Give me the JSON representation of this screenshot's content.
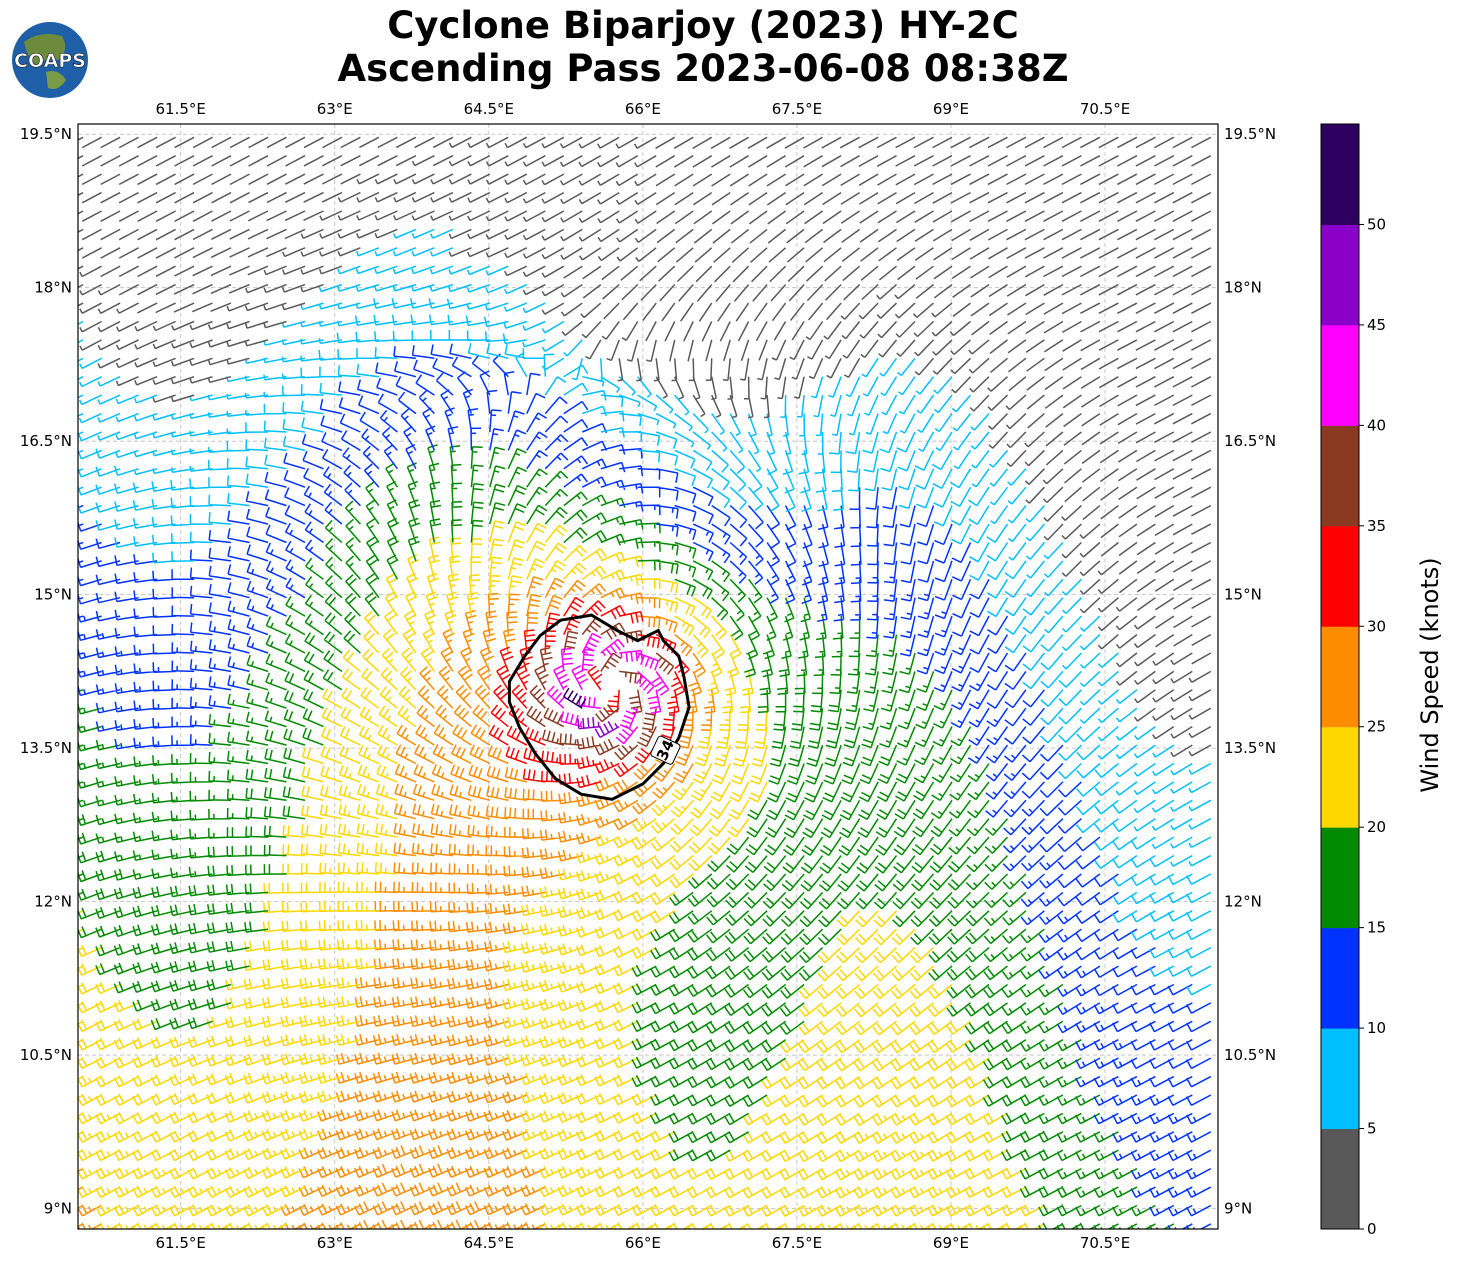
{
  "title_line1": "Cyclone Biparjoy (2023) HY-2C",
  "title_line2": "Ascending Pass 2023-06-08 08:38Z",
  "logo_text": "COAPS",
  "map": {
    "lon_range": [
      60.5,
      71.6
    ],
    "lat_range": [
      8.8,
      19.6
    ],
    "lon_ticks": [
      {
        "value": 61.5,
        "label": "61.5°E"
      },
      {
        "value": 63.0,
        "label": "63°E"
      },
      {
        "value": 64.5,
        "label": "64.5°E"
      },
      {
        "value": 66.0,
        "label": "66°E"
      },
      {
        "value": 67.5,
        "label": "67.5°E"
      },
      {
        "value": 69.0,
        "label": "69°E"
      },
      {
        "value": 70.5,
        "label": "70.5°E"
      }
    ],
    "lat_ticks": [
      {
        "value": 19.5,
        "label": "19.5°N"
      },
      {
        "value": 18.0,
        "label": "18°N"
      },
      {
        "value": 16.5,
        "label": "16.5°N"
      },
      {
        "value": 15.0,
        "label": "15°N"
      },
      {
        "value": 13.5,
        "label": "13.5°N"
      },
      {
        "value": 12.0,
        "label": "12°N"
      },
      {
        "value": 10.5,
        "label": "10.5°N"
      },
      {
        "value": 9.0,
        "label": "9°N"
      }
    ],
    "grid": true,
    "storm_center": {
      "lon": 65.7,
      "lat": 14.1
    },
    "contour_label": "34",
    "contour_34kt": [
      [
        65.2,
        14.75
      ],
      [
        65.5,
        14.8
      ],
      [
        65.75,
        14.65
      ],
      [
        65.95,
        14.55
      ],
      [
        66.15,
        14.65
      ],
      [
        66.2,
        14.55
      ],
      [
        66.35,
        14.4
      ],
      [
        66.4,
        14.2
      ],
      [
        66.45,
        13.9
      ],
      [
        66.35,
        13.6
      ],
      [
        66.2,
        13.35
      ],
      [
        66.0,
        13.15
      ],
      [
        65.7,
        13.0
      ],
      [
        65.4,
        13.05
      ],
      [
        65.15,
        13.2
      ],
      [
        64.95,
        13.45
      ],
      [
        64.8,
        13.7
      ],
      [
        64.7,
        13.95
      ],
      [
        64.7,
        14.15
      ],
      [
        64.85,
        14.4
      ],
      [
        65.0,
        14.6
      ],
      [
        65.2,
        14.75
      ]
    ]
  },
  "colorbar": {
    "label": "Wind Speed (knots)",
    "ticks": [
      "0",
      "5",
      "10",
      "15",
      "20",
      "25",
      "30",
      "35",
      "40",
      "45",
      "50"
    ],
    "colors": [
      "#595959",
      "#00bfff",
      "#0033ff",
      "#008b00",
      "#ffd700",
      "#ff8c00",
      "#ff0000",
      "#8b3a22",
      "#ff00ff",
      "#8b00c8",
      "#2e0060"
    ]
  }
}
